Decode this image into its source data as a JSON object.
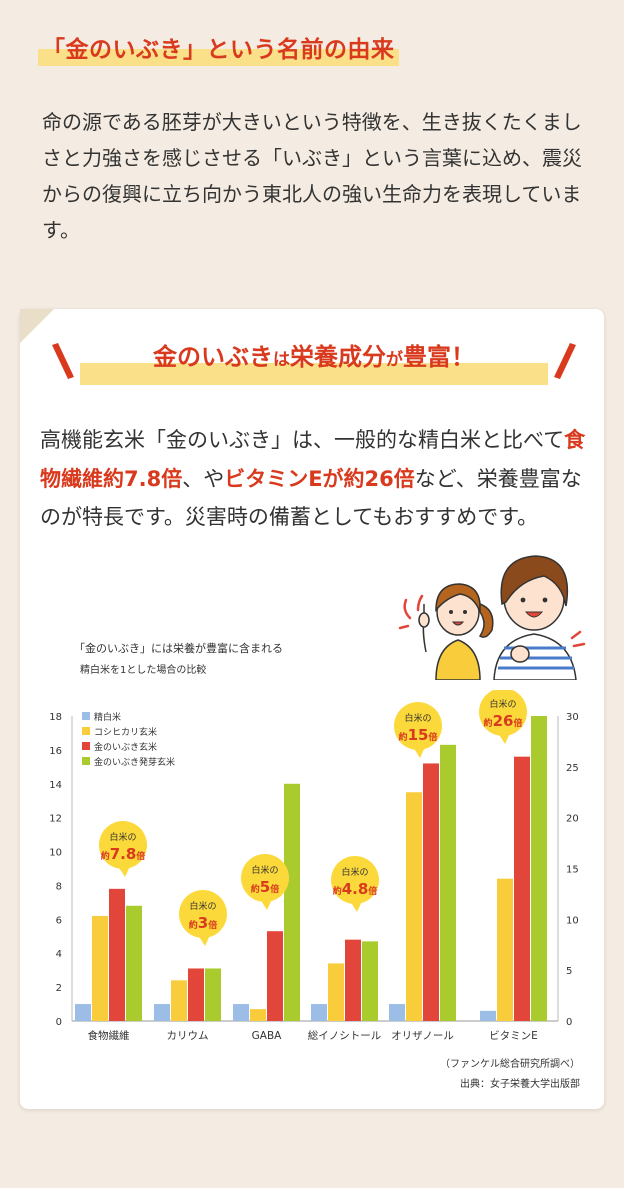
{
  "heading": "「金のいぶき」という名前の由来",
  "intro": "命の源である胚芽が大きいという特徴を、生き抜くたくましさと力強さを感じさせる「いぶき」という言葉に込め、震災からの復興に立ち向かう東北人の強い生命力を表現しています。",
  "banner": {
    "part1": "金のいぶき",
    "part2": "は",
    "part3": "栄養成分",
    "part4": "が",
    "part5": "豊富！"
  },
  "body": {
    "t1": "高機能玄米「金のいぶき」は、一般的な精白米と比べて",
    "h1": "食物繊維約7.8倍",
    "t2": "、や",
    "h2": "ビタミンEが約26倍",
    "t3": "など、栄養豊富なのが特長です。災害時の備蓄としてもおすすめです。"
  },
  "colors": {
    "accent": "#d93a1e",
    "highlight": "#fbe08a",
    "bubble": "#fcd93a",
    "series": [
      "#9bbde6",
      "#f9cc3c",
      "#e2463b",
      "#aacb2d"
    ]
  },
  "credits": {
    "line1": "（ファンケル総合研究所調べ）",
    "line2": "出典：女子栄養大学出版部"
  },
  "chart_data": {
    "type": "bar",
    "title": "「金のいぶき」には栄養が豊富に含まれる",
    "subtitle": "精白米を1とした場合の比較",
    "categories": [
      "食物繊維",
      "カリウム",
      "GABA",
      "総イノシトール",
      "オリザノール",
      "ビタミンE"
    ],
    "series": [
      {
        "name": "精白米",
        "values": [
          1,
          1,
          1,
          1,
          1,
          1
        ]
      },
      {
        "name": "コシヒカリ玄米",
        "values": [
          6.2,
          2.4,
          0.7,
          3.4,
          13.5,
          14
        ]
      },
      {
        "name": "金のいぶき玄米",
        "values": [
          7.8,
          3.1,
          5.3,
          4.8,
          15.2,
          26
        ]
      },
      {
        "name": "金のいぶき発芽玄米",
        "values": [
          6.8,
          3.1,
          14.0,
          4.7,
          16.3,
          30
        ]
      }
    ],
    "ylim_left": [
      0,
      18
    ],
    "yticks_left": [
      "0",
      "2",
      "4",
      "6",
      "8",
      "10",
      "12",
      "14",
      "16",
      "18"
    ],
    "ylim_right": [
      0,
      30
    ],
    "yticks_right": [
      "0",
      "5",
      "10",
      "15",
      "20",
      "25",
      "30"
    ],
    "right_axis_categories": [
      "ビタミンE"
    ],
    "legend_position": "top-left",
    "annotations": [
      {
        "category": "食物繊維",
        "line1": "白米の",
        "prefix": "約",
        "value": "7.8",
        "suffix": "倍"
      },
      {
        "category": "カリウム",
        "line1": "白米の",
        "prefix": "約",
        "value": "3",
        "suffix": "倍"
      },
      {
        "category": "GABA",
        "line1": "白米の",
        "prefix": "約",
        "value": "5",
        "suffix": "倍"
      },
      {
        "category": "総イノシトール",
        "line1": "白米の",
        "prefix": "約",
        "value": "4.8",
        "suffix": "倍"
      },
      {
        "category": "オリザノール",
        "line1": "白米の",
        "prefix": "約",
        "value": "15",
        "suffix": "倍"
      },
      {
        "category": "ビタミンE",
        "line1": "白米の",
        "prefix": "約",
        "value": "26",
        "suffix": "倍"
      }
    ]
  }
}
